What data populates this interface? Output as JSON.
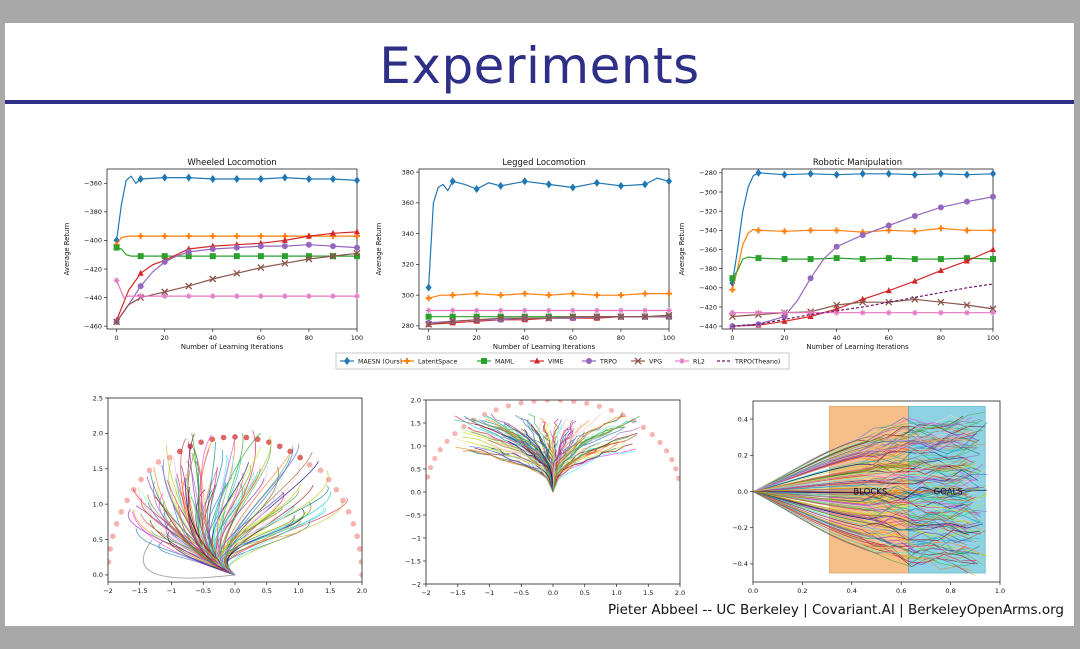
{
  "slide": {
    "title": "Experiments",
    "footer": "Pieter Abbeel -- UC Berkeley | Covariant.AI | BerkeleyOpenArms.org"
  },
  "legend": [
    {
      "name": "MAESN (Ours)",
      "color": "#1f77b4",
      "marker": "diamond",
      "dash": false
    },
    {
      "name": "LatentSpace",
      "color": "#ff7f0e",
      "marker": "plus",
      "dash": false
    },
    {
      "name": "MAML",
      "color": "#2ca02c",
      "marker": "square",
      "dash": false
    },
    {
      "name": "VIME",
      "color": "#d62728",
      "marker": "triangle",
      "dash": false
    },
    {
      "name": "TRPO",
      "color": "#9467bd",
      "marker": "circle",
      "dash": false
    },
    {
      "name": "VPG",
      "color": "#8c564b",
      "marker": "x",
      "dash": false
    },
    {
      "name": "RL2",
      "color": "#e377c2",
      "marker": "star",
      "dash": false
    },
    {
      "name": "TRPO(Theano)",
      "color": "#6a1b6a",
      "marker": "none",
      "dash": true
    }
  ],
  "chart_data": [
    {
      "type": "line",
      "title": "Wheeled Locomotion",
      "xlabel": "Number of Learning Iterations",
      "ylabel": "Average Return",
      "xlim": [
        -4,
        100
      ],
      "ylim": [
        -462,
        -350
      ],
      "xticks": [
        0,
        20,
        40,
        60,
        80,
        100
      ],
      "yticks": [
        -360,
        -380,
        -400,
        -420,
        -440,
        -460
      ],
      "series": [
        {
          "name": "MAESN (Ours)",
          "x": [
            0,
            2,
            4,
            6,
            8,
            10,
            20,
            30,
            40,
            50,
            60,
            70,
            80,
            90,
            100
          ],
          "y": [
            -400,
            -375,
            -358,
            -355,
            -360,
            -357,
            -356,
            -356,
            -357,
            -357,
            -357,
            -356,
            -357,
            -357,
            -358
          ]
        },
        {
          "name": "LatentSpace",
          "x": [
            0,
            2,
            5,
            10,
            20,
            30,
            40,
            50,
            60,
            70,
            80,
            90,
            100
          ],
          "y": [
            -403,
            -398,
            -397,
            -397,
            -397,
            -397,
            -397,
            -397,
            -397,
            -397,
            -397,
            -397,
            -397
          ]
        },
        {
          "name": "MAML",
          "x": [
            0,
            2,
            4,
            6,
            10,
            20,
            30,
            40,
            50,
            60,
            70,
            80,
            90,
            100
          ],
          "y": [
            -405,
            -406,
            -410,
            -411,
            -411,
            -411,
            -411,
            -411,
            -411,
            -411,
            -411,
            -411,
            -411,
            -411
          ]
        },
        {
          "name": "VIME",
          "x": [
            0,
            5,
            10,
            15,
            20,
            25,
            30,
            40,
            50,
            60,
            70,
            80,
            90,
            100
          ],
          "y": [
            -456,
            -435,
            -423,
            -417,
            -414,
            -410,
            -406,
            -404,
            -403,
            -402,
            -400,
            -397,
            -395,
            -394
          ]
        },
        {
          "name": "TRPO",
          "x": [
            0,
            5,
            10,
            15,
            20,
            25,
            30,
            40,
            50,
            60,
            70,
            80,
            90,
            100
          ],
          "y": [
            -457,
            -445,
            -432,
            -422,
            -415,
            -411,
            -408,
            -406,
            -405,
            -404,
            -404,
            -403,
            -404,
            -405
          ]
        },
        {
          "name": "VPG",
          "x": [
            0,
            5,
            10,
            20,
            30,
            40,
            50,
            60,
            70,
            80,
            90,
            100
          ],
          "y": [
            -457,
            -445,
            -440,
            -436,
            -432,
            -427,
            -423,
            -419,
            -416,
            -413,
            -411,
            -409
          ]
        },
        {
          "name": "RL2",
          "x": [
            0,
            3,
            5,
            10,
            20,
            30,
            40,
            50,
            60,
            70,
            80,
            90,
            100
          ],
          "y": [
            -428,
            -440,
            -439,
            -439,
            -439,
            -439,
            -439,
            -439,
            -439,
            -439,
            -439,
            -439,
            -439
          ]
        }
      ]
    },
    {
      "type": "line",
      "title": "Legged Locomotion",
      "xlabel": "Number of Learning Iterations",
      "ylabel": "Average Return",
      "xlim": [
        -4,
        100
      ],
      "ylim": [
        278,
        382
      ],
      "xticks": [
        0,
        20,
        40,
        60,
        80,
        100
      ],
      "yticks": [
        380,
        360,
        340,
        320,
        300,
        280
      ],
      "series": [
        {
          "name": "MAESN (Ours)",
          "x": [
            0,
            2,
            4,
            6,
            8,
            10,
            15,
            20,
            25,
            30,
            40,
            50,
            60,
            70,
            80,
            90,
            95,
            100
          ],
          "y": [
            305,
            360,
            370,
            372,
            368,
            374,
            372,
            369,
            373,
            371,
            374,
            372,
            370,
            373,
            371,
            372,
            376,
            374
          ]
        },
        {
          "name": "LatentSpace",
          "x": [
            0,
            5,
            10,
            20,
            30,
            40,
            50,
            60,
            70,
            80,
            90,
            100
          ],
          "y": [
            298,
            300,
            300,
            301,
            300,
            301,
            300,
            301,
            300,
            300,
            301,
            301
          ]
        },
        {
          "name": "MAML",
          "x": [
            0,
            10,
            20,
            30,
            40,
            50,
            60,
            70,
            80,
            90,
            100
          ],
          "y": [
            286,
            286,
            286,
            286,
            286,
            286,
            286,
            286,
            286,
            286,
            286
          ]
        },
        {
          "name": "VIME",
          "x": [
            0,
            10,
            20,
            30,
            40,
            50,
            60,
            70,
            80,
            90,
            100
          ],
          "y": [
            281,
            282,
            283,
            284,
            284,
            285,
            285,
            285,
            286,
            286,
            286
          ]
        },
        {
          "name": "TRPO",
          "x": [
            0,
            10,
            20,
            30,
            40,
            50,
            60,
            70,
            80,
            90,
            100
          ],
          "y": [
            282,
            283,
            284,
            284,
            285,
            285,
            285,
            286,
            286,
            286,
            286
          ]
        },
        {
          "name": "VPG",
          "x": [
            0,
            10,
            20,
            30,
            40,
            50,
            60,
            70,
            80,
            90,
            100
          ],
          "y": [
            281,
            283,
            284,
            285,
            285,
            285,
            286,
            286,
            286,
            286,
            287
          ]
        },
        {
          "name": "RL2",
          "x": [
            0,
            10,
            20,
            30,
            40,
            50,
            60,
            70,
            80,
            90,
            100
          ],
          "y": [
            290,
            290,
            290,
            290,
            290,
            290,
            290,
            290,
            290,
            290,
            290
          ]
        }
      ]
    },
    {
      "type": "line",
      "title": "Robotic Manipulation",
      "xlabel": "Number of Learning Iterations",
      "ylabel": "Average Return",
      "xlim": [
        -4,
        100
      ],
      "ylim": [
        -443,
        -276
      ],
      "xticks": [
        0,
        20,
        40,
        60,
        80,
        100
      ],
      "yticks": [
        -280,
        -300,
        -320,
        -340,
        -360,
        -380,
        -400,
        -420,
        -440
      ],
      "series": [
        {
          "name": "MAESN (Ours)",
          "x": [
            0,
            2,
            4,
            6,
            8,
            10,
            15,
            20,
            30,
            40,
            50,
            60,
            70,
            80,
            90,
            100
          ],
          "y": [
            -395,
            -360,
            -320,
            -295,
            -283,
            -280,
            -281,
            -282,
            -281,
            -282,
            -281,
            -281,
            -282,
            -281,
            -282,
            -281
          ]
        },
        {
          "name": "LatentSpace",
          "x": [
            0,
            2,
            4,
            6,
            8,
            10,
            20,
            30,
            40,
            50,
            60,
            70,
            80,
            90,
            100
          ],
          "y": [
            -402,
            -380,
            -355,
            -343,
            -339,
            -340,
            -341,
            -340,
            -340,
            -342,
            -340,
            -341,
            -338,
            -340,
            -340
          ]
        },
        {
          "name": "MAML",
          "x": [
            0,
            2,
            4,
            6,
            10,
            20,
            30,
            40,
            50,
            60,
            70,
            80,
            90,
            100
          ],
          "y": [
            -390,
            -382,
            -370,
            -368,
            -369,
            -370,
            -370,
            -369,
            -370,
            -369,
            -370,
            -370,
            -369,
            -370
          ]
        },
        {
          "name": "VIME",
          "x": [
            0,
            10,
            20,
            30,
            40,
            50,
            60,
            70,
            80,
            90,
            100
          ],
          "y": [
            -440,
            -439,
            -435,
            -430,
            -422,
            -412,
            -403,
            -393,
            -382,
            -372,
            -360
          ]
        },
        {
          "name": "TRPO",
          "x": [
            0,
            10,
            20,
            25,
            30,
            35,
            40,
            50,
            60,
            70,
            80,
            90,
            100
          ],
          "y": [
            -440,
            -438,
            -430,
            -413,
            -390,
            -370,
            -357,
            -345,
            -335,
            -325,
            -316,
            -310,
            -305
          ]
        },
        {
          "name": "VPG",
          "x": [
            0,
            10,
            20,
            30,
            40,
            50,
            60,
            70,
            80,
            90,
            100
          ],
          "y": [
            -430,
            -428,
            -426,
            -425,
            -418,
            -415,
            -415,
            -412,
            -415,
            -418,
            -422
          ]
        },
        {
          "name": "RL2",
          "x": [
            0,
            10,
            20,
            30,
            40,
            50,
            60,
            70,
            80,
            90,
            100
          ],
          "y": [
            -426,
            -426,
            -426,
            -426,
            -426,
            -426,
            -426,
            -426,
            -426,
            -426,
            -426
          ]
        },
        {
          "name": "TRPO(Theano)",
          "x": [
            0,
            10,
            20,
            30,
            40,
            50,
            60,
            70,
            80,
            90,
            100
          ],
          "y": [
            -440,
            -438,
            -433,
            -428,
            -424,
            -420,
            -415,
            -410,
            -405,
            -400,
            -396
          ]
        }
      ]
    },
    {
      "type": "scatter",
      "xlim": [
        -2.0,
        2.0
      ],
      "ylim": [
        -0.1,
        2.5
      ],
      "xticks": [
        -2.0,
        -1.5,
        -1.0,
        -0.5,
        0.0,
        0.5,
        1.0,
        1.5,
        2.0
      ],
      "yticks": [
        0.0,
        0.5,
        1.0,
        1.5,
        2.0,
        2.5
      ]
    },
    {
      "type": "scatter",
      "xlim": [
        -2.0,
        2.0
      ],
      "ylim": [
        -2.0,
        2.0
      ],
      "xticks": [
        -2.0,
        -1.5,
        -1.0,
        -0.5,
        0.0,
        0.5,
        1.0,
        1.5,
        2.0
      ],
      "yticks": [
        2.0,
        1.5,
        1.0,
        0.5,
        0.0,
        -0.5,
        -1.0,
        -1.5,
        -2.0
      ]
    },
    {
      "type": "scatter",
      "xlim": [
        0.0,
        1.0
      ],
      "ylim": [
        -0.5,
        0.5
      ],
      "xticks": [
        0.0,
        0.2,
        0.4,
        0.6,
        0.8,
        1.0
      ],
      "yticks": [
        0.4,
        0.2,
        0.0,
        -0.2,
        -0.4
      ],
      "annotations": [
        "BLOCKS",
        "GOALS"
      ]
    }
  ]
}
